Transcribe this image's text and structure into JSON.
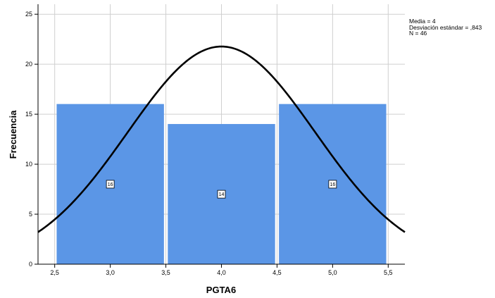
{
  "chart_data": {
    "type": "bar",
    "subtype": "histogram-with-normal-curve",
    "xlabel": "PGTA6",
    "ylabel": "Frecuencia",
    "bins": [
      {
        "from": 2.5,
        "to": 3.5,
        "value": 16,
        "label": "16"
      },
      {
        "from": 3.5,
        "to": 4.5,
        "value": 14,
        "label": "14"
      },
      {
        "from": 4.5,
        "to": 5.5,
        "value": 16,
        "label": "16"
      }
    ],
    "xlim": [
      2.35,
      5.65
    ],
    "ylim": [
      0,
      26
    ],
    "xticks": [
      {
        "value": 2.5,
        "label": "2,5"
      },
      {
        "value": 3.0,
        "label": "3,0"
      },
      {
        "value": 3.5,
        "label": "3,5"
      },
      {
        "value": 4.0,
        "label": "4,0"
      },
      {
        "value": 4.5,
        "label": "4,5"
      },
      {
        "value": 5.0,
        "label": "5,0"
      },
      {
        "value": 5.5,
        "label": "5,5"
      }
    ],
    "yticks": [
      {
        "value": 0,
        "label": "0"
      },
      {
        "value": 5,
        "label": "5"
      },
      {
        "value": 10,
        "label": "10"
      },
      {
        "value": 15,
        "label": "15"
      },
      {
        "value": 20,
        "label": "20"
      },
      {
        "value": 25,
        "label": "25"
      }
    ],
    "normal_curve": {
      "mean": 4,
      "sd": 0.843,
      "n": 46,
      "bin_width": 1
    },
    "grid": true,
    "bar_color": "#5b96e6",
    "curve_color": "#000000"
  },
  "stats": {
    "mean_text": "Media = 4",
    "sd_text": "Desviación estándar = ,843",
    "n_text": "N = 46"
  }
}
